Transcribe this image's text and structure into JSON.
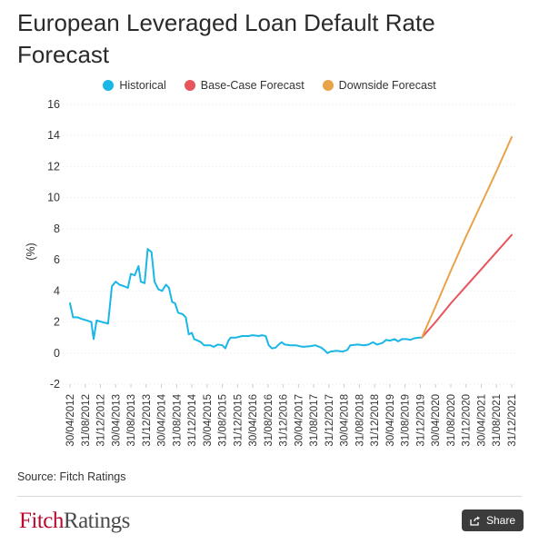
{
  "chart_data": {
    "type": "line",
    "title": "European Leveraged Loan Default Rate Forecast",
    "ylabel": "(%)",
    "xlabel": "",
    "ylim": [
      -2,
      16
    ],
    "yticks": [
      -2,
      0,
      2,
      4,
      6,
      8,
      10,
      12,
      14,
      16
    ],
    "grid": true,
    "legend_position": "top-center",
    "xticks": [
      "30/04/2012",
      "31/08/2012",
      "31/12/2012",
      "30/04/2013",
      "31/08/2013",
      "31/12/2013",
      "30/04/2014",
      "31/08/2014",
      "31/12/2014",
      "30/04/2015",
      "31/08/2015",
      "31/12/2015",
      "30/04/2016",
      "31/08/2016",
      "31/12/2016",
      "30/04/2017",
      "31/08/2017",
      "31/12/2017",
      "30/04/2018",
      "31/08/2018",
      "31/12/2018",
      "30/04/2019",
      "31/08/2019",
      "31/12/2019",
      "30/04/2020",
      "31/08/2020",
      "31/12/2020",
      "30/04/2021",
      "31/08/2021",
      "31/12/2021"
    ],
    "series": [
      {
        "name": "Historical",
        "color": "#1ab7e6",
        "points": [
          [
            0,
            3.2
          ],
          [
            0.2,
            2.3
          ],
          [
            0.5,
            2.3
          ],
          [
            0.75,
            2.2
          ],
          [
            1.1,
            2.1
          ],
          [
            1.4,
            2.0
          ],
          [
            1.55,
            0.9
          ],
          [
            1.75,
            2.1
          ],
          [
            2.1,
            2.0
          ],
          [
            2.5,
            1.9
          ],
          [
            2.75,
            4.3
          ],
          [
            3.0,
            4.6
          ],
          [
            3.25,
            4.4
          ],
          [
            3.55,
            4.3
          ],
          [
            3.8,
            4.2
          ],
          [
            4.0,
            5.1
          ],
          [
            4.25,
            5.0
          ],
          [
            4.5,
            5.6
          ],
          [
            4.65,
            4.6
          ],
          [
            4.9,
            4.5
          ],
          [
            5.1,
            6.7
          ],
          [
            5.35,
            6.5
          ],
          [
            5.55,
            4.6
          ],
          [
            5.8,
            4.1
          ],
          [
            6.05,
            4.0
          ],
          [
            6.3,
            4.4
          ],
          [
            6.5,
            4.2
          ],
          [
            6.7,
            3.3
          ],
          [
            6.9,
            3.2
          ],
          [
            7.1,
            2.6
          ],
          [
            7.4,
            2.5
          ],
          [
            7.6,
            2.3
          ],
          [
            7.8,
            1.2
          ],
          [
            8.0,
            1.3
          ],
          [
            8.15,
            0.9
          ],
          [
            8.4,
            0.8
          ],
          [
            8.6,
            0.7
          ],
          [
            8.8,
            0.5
          ],
          [
            9.2,
            0.5
          ],
          [
            9.45,
            0.4
          ],
          [
            9.7,
            0.55
          ],
          [
            10.0,
            0.5
          ],
          [
            10.2,
            0.3
          ],
          [
            10.4,
            0.8
          ],
          [
            10.55,
            1.0
          ],
          [
            10.9,
            1.0
          ],
          [
            11.3,
            1.1
          ],
          [
            11.7,
            1.1
          ],
          [
            12.0,
            1.15
          ],
          [
            12.4,
            1.1
          ],
          [
            12.6,
            1.15
          ],
          [
            12.85,
            1.1
          ],
          [
            13.05,
            0.5
          ],
          [
            13.25,
            0.3
          ],
          [
            13.5,
            0.35
          ],
          [
            13.7,
            0.55
          ],
          [
            13.9,
            0.7
          ],
          [
            14.1,
            0.55
          ],
          [
            14.5,
            0.5
          ],
          [
            14.85,
            0.5
          ],
          [
            15.05,
            0.45
          ],
          [
            15.3,
            0.4
          ],
          [
            15.8,
            0.45
          ],
          [
            16.1,
            0.5
          ],
          [
            16.5,
            0.35
          ],
          [
            16.7,
            0.2
          ],
          [
            16.9,
            0.0
          ],
          [
            17.1,
            0.1
          ],
          [
            17.5,
            0.15
          ],
          [
            17.9,
            0.1
          ],
          [
            18.2,
            0.2
          ],
          [
            18.4,
            0.5
          ],
          [
            18.9,
            0.55
          ],
          [
            19.3,
            0.5
          ],
          [
            19.6,
            0.55
          ],
          [
            19.9,
            0.7
          ],
          [
            20.15,
            0.55
          ],
          [
            20.5,
            0.65
          ],
          [
            20.75,
            0.85
          ],
          [
            21.0,
            0.8
          ],
          [
            21.3,
            0.9
          ],
          [
            21.55,
            0.75
          ],
          [
            21.8,
            0.9
          ],
          [
            22.1,
            0.9
          ],
          [
            22.35,
            0.85
          ],
          [
            22.6,
            0.95
          ],
          [
            22.9,
            1.0
          ],
          [
            23.1,
            1.0
          ]
        ]
      },
      {
        "name": "Base-Case Forecast",
        "color": "#e8545c",
        "points": [
          [
            23.1,
            1.0
          ],
          [
            24.0,
            2.0
          ],
          [
            25.0,
            3.2
          ],
          [
            26.0,
            4.3
          ],
          [
            27.0,
            5.4
          ],
          [
            28.0,
            6.5
          ],
          [
            29.0,
            7.6
          ]
        ]
      },
      {
        "name": "Downside Forecast",
        "color": "#e8a348",
        "points": [
          [
            23.1,
            1.0
          ],
          [
            24.0,
            3.0
          ],
          [
            25.0,
            5.3
          ],
          [
            26.0,
            7.5
          ],
          [
            27.0,
            9.6
          ],
          [
            28.0,
            11.7
          ],
          [
            29.0,
            13.9
          ]
        ]
      }
    ]
  },
  "legend": [
    {
      "label": "Historical",
      "color": "#1ab7e6"
    },
    {
      "label": "Base-Case Forecast",
      "color": "#e8545c"
    },
    {
      "label": "Downside Forecast",
      "color": "#e8a348"
    }
  ],
  "source": "Source: Fitch Ratings",
  "brand": {
    "part1": "Fitch",
    "part2": "Ratings"
  },
  "share_label": "Share",
  "share_icon": "share-icon"
}
